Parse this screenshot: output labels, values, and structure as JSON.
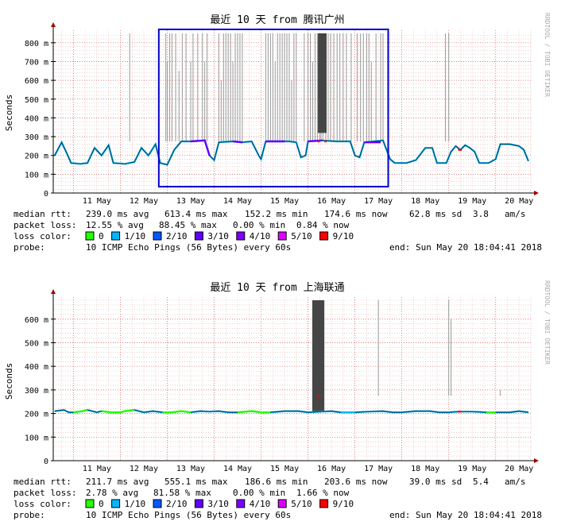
{
  "colors": {
    "grid_minor": "#e8b0b0",
    "grid_major": "#d06060",
    "axis": "#000000",
    "arrow": "#a00000",
    "spikes": "#999999",
    "highlight_box": "#0000cc",
    "watermark": "#aaaaaa",
    "loss": [
      "#26ff00",
      "#00b8ff",
      "#0059ff",
      "#5e00ff",
      "#7e00ff",
      "#dd00ff",
      "#ff0000"
    ]
  },
  "watermark": "RRDTOOL / TOBI OETIKER",
  "chart_data": [
    {
      "type": "line",
      "title": "最近 10 天 from 腾讯广州",
      "ylabel": "Seconds",
      "ylim": [
        0,
        850
      ],
      "yticks": [
        {
          "v": 0,
          "label": "0"
        },
        {
          "v": 100,
          "label": "100 m"
        },
        {
          "v": 200,
          "label": "200 m"
        },
        {
          "v": 300,
          "label": "300 m"
        },
        {
          "v": 400,
          "label": "400 m"
        },
        {
          "v": 500,
          "label": "500 m"
        },
        {
          "v": 600,
          "label": "600 m"
        },
        {
          "v": 700,
          "label": "700 m"
        },
        {
          "v": 800,
          "label": "800 m"
        }
      ],
      "xrange": [
        10.57,
        20.75
      ],
      "xticks": [
        {
          "v": 11,
          "label": "11 May"
        },
        {
          "v": 12,
          "label": "12 May"
        },
        {
          "v": 13,
          "label": "13 May"
        },
        {
          "v": 14,
          "label": "14 May"
        },
        {
          "v": 15,
          "label": "15 May"
        },
        {
          "v": 16,
          "label": "16 May"
        },
        {
          "v": 17,
          "label": "17 May"
        },
        {
          "v": 18,
          "label": "18 May"
        },
        {
          "v": 19,
          "label": "19 May"
        },
        {
          "v": 20,
          "label": "20 May"
        }
      ],
      "highlight_range": [
        12.82,
        17.71
      ],
      "series": [
        {
          "points": [
            [
              10.6,
              200
            ],
            [
              10.75,
              270
            ],
            [
              10.88,
              200
            ],
            [
              10.95,
              160
            ],
            [
              11.15,
              155
            ],
            [
              11.3,
              160
            ],
            [
              11.45,
              240
            ],
            [
              11.6,
              200
            ],
            [
              11.75,
              255
            ],
            [
              11.85,
              160
            ],
            [
              12.1,
              155
            ],
            [
              12.3,
              165
            ],
            [
              12.45,
              240
            ],
            [
              12.6,
              200
            ],
            [
              12.75,
              260
            ],
            [
              12.85,
              160
            ],
            [
              13.0,
              150
            ],
            [
              13.15,
              230
            ],
            [
              13.3,
              275
            ],
            [
              13.5,
              275
            ],
            [
              13.8,
              280
            ],
            [
              13.9,
              200
            ],
            [
              14.0,
              175
            ],
            [
              14.1,
              270
            ],
            [
              14.4,
              275
            ],
            [
              14.6,
              270
            ],
            [
              14.8,
              275
            ],
            [
              14.95,
              200
            ],
            [
              15.0,
              180
            ],
            [
              15.1,
              275
            ],
            [
              15.5,
              275
            ],
            [
              15.6,
              275
            ],
            [
              15.75,
              270
            ],
            [
              15.85,
              190
            ],
            [
              15.95,
              200
            ],
            [
              16.0,
              275
            ],
            [
              16.3,
              280
            ],
            [
              16.6,
              275
            ],
            [
              16.9,
              275
            ],
            [
              17.0,
              200
            ],
            [
              17.1,
              190
            ],
            [
              17.2,
              270
            ],
            [
              17.6,
              280
            ],
            [
              17.75,
              180
            ],
            [
              17.85,
              160
            ],
            [
              18.1,
              160
            ],
            [
              18.3,
              175
            ],
            [
              18.5,
              240
            ],
            [
              18.65,
              240
            ],
            [
              18.75,
              160
            ],
            [
              18.95,
              160
            ],
            [
              19.05,
              220
            ],
            [
              19.15,
              250
            ],
            [
              19.25,
              230
            ],
            [
              19.35,
              255
            ],
            [
              19.45,
              240
            ],
            [
              19.55,
              220
            ],
            [
              19.65,
              160
            ],
            [
              19.85,
              160
            ],
            [
              20.0,
              180
            ],
            [
              20.1,
              260
            ],
            [
              20.3,
              260
            ],
            [
              20.5,
              250
            ],
            [
              20.6,
              230
            ],
            [
              20.7,
              170
            ]
          ],
          "loss_segments": [
            [
              13.4,
              13.9,
              3
            ],
            [
              14.2,
              14.6,
              3
            ],
            [
              15.1,
              15.5,
              3
            ],
            [
              16.0,
              16.4,
              3
            ],
            [
              17.2,
              17.55,
              3
            ],
            [
              16.2,
              16.25,
              6
            ],
            [
              16.35,
              16.4,
              6
            ],
            [
              19.2,
              19.28,
              6
            ]
          ]
        }
      ],
      "spikes": [
        [
          12.97,
          850
        ],
        [
          13.0,
          700
        ],
        [
          13.05,
          850
        ],
        [
          13.1,
          850
        ],
        [
          13.18,
          850
        ],
        [
          13.25,
          650
        ],
        [
          13.32,
          850
        ],
        [
          13.4,
          850
        ],
        [
          13.5,
          700
        ],
        [
          13.55,
          850
        ],
        [
          13.65,
          850
        ],
        [
          13.75,
          850
        ],
        [
          13.8,
          700
        ],
        [
          13.85,
          850
        ],
        [
          14.1,
          850
        ],
        [
          14.15,
          600
        ],
        [
          14.2,
          850
        ],
        [
          14.25,
          850
        ],
        [
          14.3,
          850
        ],
        [
          14.35,
          850
        ],
        [
          14.4,
          700
        ],
        [
          14.45,
          850
        ],
        [
          14.5,
          850
        ],
        [
          14.55,
          850
        ],
        [
          14.6,
          850
        ],
        [
          15.1,
          850
        ],
        [
          15.15,
          850
        ],
        [
          15.2,
          850
        ],
        [
          15.25,
          850
        ],
        [
          15.3,
          700
        ],
        [
          15.35,
          850
        ],
        [
          15.4,
          850
        ],
        [
          15.45,
          850
        ],
        [
          15.5,
          850
        ],
        [
          15.55,
          850
        ],
        [
          15.6,
          850
        ],
        [
          15.65,
          600
        ],
        [
          15.7,
          850
        ],
        [
          15.75,
          850
        ],
        [
          15.92,
          850
        ],
        [
          16.0,
          850
        ],
        [
          16.05,
          850
        ],
        [
          16.1,
          700
        ],
        [
          16.15,
          850
        ],
        [
          16.2,
          850
        ],
        [
          16.25,
          850
        ],
        [
          16.28,
          850
        ],
        [
          16.32,
          850
        ],
        [
          16.38,
          850
        ],
        [
          16.43,
          850
        ],
        [
          16.48,
          850
        ],
        [
          16.55,
          850
        ],
        [
          16.62,
          850
        ],
        [
          16.68,
          850
        ],
        [
          16.75,
          850
        ],
        [
          16.82,
          850
        ],
        [
          16.92,
          850
        ],
        [
          17.05,
          850
        ],
        [
          17.12,
          850
        ],
        [
          17.18,
          850
        ],
        [
          17.25,
          850
        ],
        [
          17.3,
          850
        ],
        [
          17.35,
          700
        ],
        [
          17.45,
          850
        ],
        [
          17.55,
          850
        ],
        [
          17.6,
          850
        ],
        [
          17.7,
          850
        ],
        [
          12.2,
          850
        ],
        [
          18.93,
          850
        ],
        [
          19.0,
          850
        ]
      ],
      "dense_blocks": [
        [
          16.22,
          16.4,
          850,
          320
        ]
      ],
      "stats": {
        "median_label": "median rtt:",
        "avg": "239.0 ms avg",
        "max": "613.4 ms max",
        "min": "152.2 ms min",
        "now": "174.6 ms now",
        "sd": "62.8 ms sd",
        "amps_val": "3.8",
        "amps_unit": "am/s",
        "loss_label": "packet loss:",
        "loss_avg": "12.55 % avg",
        "loss_max": "88.45 % max",
        "loss_min": "0.00 % min",
        "loss_now": "0.84 % now",
        "loss_color_label": "loss color:",
        "probe_label": "probe:",
        "probe_value": "10 ICMP Echo Pings (56 Bytes) every 60s",
        "end_value": "end: Sun May 20 18:04:41 2018"
      }
    },
    {
      "type": "line",
      "title": "最近 10 天 from 上海联通",
      "ylabel": "Seconds",
      "ylim": [
        0,
        680
      ],
      "yticks": [
        {
          "v": 0,
          "label": "0"
        },
        {
          "v": 100,
          "label": "100 m"
        },
        {
          "v": 200,
          "label": "200 m"
        },
        {
          "v": 300,
          "label": "300 m"
        },
        {
          "v": 400,
          "label": "400 m"
        },
        {
          "v": 500,
          "label": "500 m"
        },
        {
          "v": 600,
          "label": "600 m"
        }
      ],
      "xrange": [
        10.57,
        20.75
      ],
      "xticks": [
        {
          "v": 11,
          "label": "11 May"
        },
        {
          "v": 12,
          "label": "12 May"
        },
        {
          "v": 13,
          "label": "13 May"
        },
        {
          "v": 14,
          "label": "14 May"
        },
        {
          "v": 15,
          "label": "15 May"
        },
        {
          "v": 16,
          "label": "16 May"
        },
        {
          "v": 17,
          "label": "17 May"
        },
        {
          "v": 18,
          "label": "18 May"
        },
        {
          "v": 19,
          "label": "19 May"
        },
        {
          "v": 20,
          "label": "20 May"
        }
      ],
      "highlight_range": null,
      "series": [
        {
          "points": [
            [
              10.6,
              210
            ],
            [
              10.8,
              215
            ],
            [
              10.9,
              205
            ],
            [
              11.0,
              205
            ],
            [
              11.2,
              210
            ],
            [
              11.3,
              215
            ],
            [
              11.5,
              205
            ],
            [
              11.6,
              210
            ],
            [
              11.8,
              205
            ],
            [
              12.0,
              205
            ],
            [
              12.1,
              210
            ],
            [
              12.3,
              215
            ],
            [
              12.5,
              205
            ],
            [
              12.7,
              210
            ],
            [
              12.9,
              205
            ],
            [
              13.1,
              205
            ],
            [
              13.3,
              210
            ],
            [
              13.5,
              205
            ],
            [
              13.7,
              210
            ],
            [
              13.9,
              208
            ],
            [
              14.1,
              210
            ],
            [
              14.3,
              205
            ],
            [
              14.5,
              205
            ],
            [
              14.8,
              210
            ],
            [
              15.0,
              205
            ],
            [
              15.2,
              205
            ],
            [
              15.5,
              210
            ],
            [
              15.8,
              210
            ],
            [
              16.0,
              205
            ],
            [
              16.3,
              208
            ],
            [
              16.5,
              210
            ],
            [
              16.7,
              205
            ],
            [
              17.0,
              205
            ],
            [
              17.3,
              208
            ],
            [
              17.6,
              210
            ],
            [
              17.8,
              205
            ],
            [
              18.0,
              205
            ],
            [
              18.3,
              210
            ],
            [
              18.6,
              210
            ],
            [
              18.8,
              205
            ],
            [
              19.0,
              205
            ],
            [
              19.2,
              208
            ],
            [
              19.5,
              208
            ],
            [
              19.8,
              205
            ],
            [
              20.0,
              205
            ],
            [
              20.3,
              205
            ],
            [
              20.5,
              210
            ],
            [
              20.7,
              205
            ]
          ],
          "loss_segments": [
            [
              10.95,
              11.3,
              0
            ],
            [
              11.6,
              12.3,
              0
            ],
            [
              12.9,
              13.6,
              0
            ],
            [
              14.5,
              15.2,
              0
            ],
            [
              16.7,
              17.0,
              1
            ],
            [
              19.6,
              20.1,
              0
            ],
            [
              16.2,
              16.26,
              6
            ],
            [
              19.2,
              19.26,
              6
            ]
          ]
        }
      ],
      "spikes": [
        [
          17.5,
          680
        ],
        [
          19.0,
          680
        ],
        [
          19.05,
          600
        ],
        [
          20.1,
          300
        ]
      ],
      "dense_blocks": [
        [
          16.1,
          16.35,
          680,
          210
        ]
      ],
      "stats": {
        "median_label": "median rtt:",
        "avg": "211.7 ms avg",
        "max": "555.1 ms max",
        "min": "186.6 ms min",
        "now": "203.6 ms now",
        "sd": "39.0 ms sd",
        "amps_val": "5.4",
        "amps_unit": "am/s",
        "loss_label": "packet loss:",
        "loss_avg": "2.78 % avg",
        "loss_max": "81.58 % max",
        "loss_min": "0.00 % min",
        "loss_now": "1.66 % now",
        "loss_color_label": "loss color:",
        "probe_label": "probe:",
        "probe_value": "10 ICMP Echo Pings (56 Bytes) every 60s",
        "end_value": "end: Sun May 20 18:04:41 2018"
      }
    }
  ],
  "legend_labels": [
    "0",
    "1/10",
    "2/10",
    "3/10",
    "4/10",
    "5/10",
    "9/10"
  ]
}
